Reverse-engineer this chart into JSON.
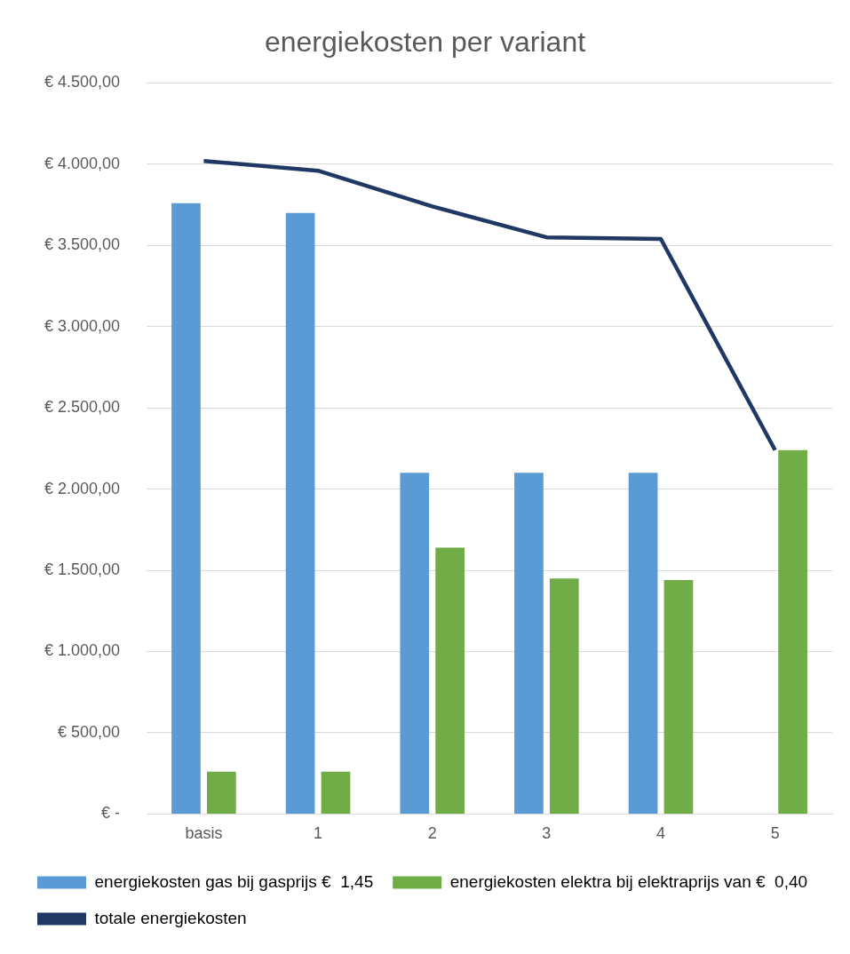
{
  "chart_data": {
    "type": "bar",
    "title": "energiekosten per variant",
    "categories": [
      "basis",
      "1",
      "2",
      "3",
      "4",
      "5"
    ],
    "series": [
      {
        "name": "energiekosten gas bij gasprijs €  1,45",
        "color": "#5b9bd5",
        "values": [
          3760,
          3700,
          2100,
          2100,
          2100,
          null
        ]
      },
      {
        "name": "energiekosten elektra bij elektraprijs van €  0,40",
        "color": "#70ad47",
        "values": [
          260,
          260,
          1640,
          1450,
          1440,
          2240
        ]
      },
      {
        "name": "totale energiekosten",
        "type": "line",
        "color": "#203864",
        "values": [
          4020,
          3960,
          3740,
          3550,
          3540,
          2240
        ],
        "marker": "none",
        "line_style": "solid"
      }
    ],
    "ylim": [
      0,
      4500
    ],
    "yticks": [
      {
        "value": 0,
        "label": "€ -"
      },
      {
        "value": 500,
        "label": "€ 500,00"
      },
      {
        "value": 1000,
        "label": "€ 1.000,00"
      },
      {
        "value": 1500,
        "label": "€ 1.500,00"
      },
      {
        "value": 2000,
        "label": "€ 2.000,00"
      },
      {
        "value": 2500,
        "label": "€ 2.500,00"
      },
      {
        "value": 3000,
        "label": "€ 3.000,00"
      },
      {
        "value": 3500,
        "label": "€ 3.500,00"
      },
      {
        "value": 4000,
        "label": "€ 4.000,00"
      },
      {
        "value": 4500,
        "label": "€ 4.500,00"
      }
    ],
    "grid": "y",
    "legend": "bottom"
  }
}
